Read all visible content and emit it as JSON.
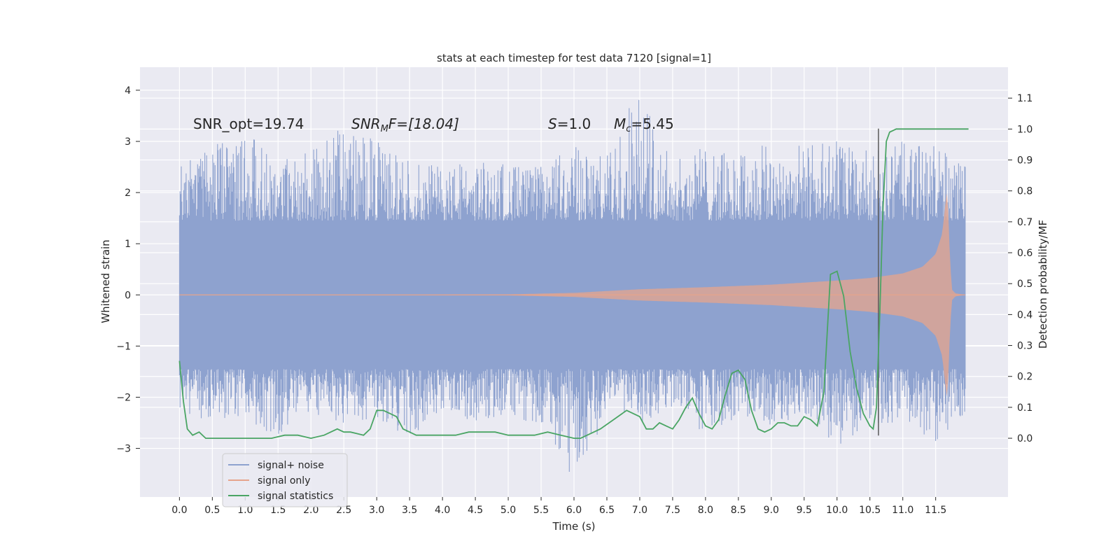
{
  "chart_data": {
    "type": "line",
    "title": "stats at each timestep for test data 7120 [signal=1]",
    "xlabel": "Time (s)",
    "ylabel_left": "Whitened strain",
    "ylabel_right": "Detection probability/MF",
    "xlim": [
      -0.6,
      12.6
    ],
    "ylim_left": [
      -3.95,
      4.45
    ],
    "ylim_right": [
      -0.19,
      1.2
    ],
    "x_ticks": [
      0.0,
      0.5,
      1.0,
      1.5,
      2.0,
      2.5,
      3.0,
      3.5,
      4.0,
      4.5,
      5.0,
      5.5,
      6.0,
      6.5,
      7.0,
      7.5,
      8.0,
      8.5,
      9.0,
      9.5,
      10.0,
      10.5,
      11.0,
      11.5
    ],
    "x_tick_labels": [
      "0.0",
      "0.5",
      "1.0",
      "1.5",
      "2.0",
      "2.5",
      "3.0",
      "3.5",
      "4.0",
      "4.5",
      "5.0",
      "5.5",
      "6.0",
      "6.5",
      "7.0",
      "7.5",
      "8.0",
      "8.5",
      "9.0",
      "9.5",
      "10.0",
      "10.5",
      "11.0",
      "11.5"
    ],
    "y_left_ticks": [
      -3,
      -2,
      -1,
      0,
      1,
      2,
      3,
      4
    ],
    "y_left_tick_labels": [
      "−3",
      "−2",
      "−1",
      "0",
      "1",
      "2",
      "3",
      "4"
    ],
    "y_right_ticks": [
      0.0,
      0.1,
      0.2,
      0.3,
      0.4,
      0.5,
      0.6,
      0.7,
      0.8,
      0.9,
      1.0,
      1.1
    ],
    "y_right_tick_labels": [
      "0.0",
      "0.1",
      "0.2",
      "0.3",
      "0.4",
      "0.5",
      "0.6",
      "0.7",
      "0.8",
      "0.9",
      "1.0",
      "1.1"
    ],
    "annotations": {
      "snr_opt": "SNR_opt=19.74",
      "snr_mf_main": "SNR",
      "snr_mf_sub": "M",
      "snr_mf_rest": "F=[18.04]",
      "s_var": "S",
      "s_val": "=1.0",
      "mc_var": "M",
      "mc_sub": "c",
      "mc_val": "=5.45"
    },
    "vline_x": 10.63,
    "vline_range": [
      -2.75,
      3.25
    ],
    "legend": [
      {
        "label": "signal+ noise",
        "color": "#8ea2cf"
      },
      {
        "label": "signal only",
        "color": "#e6a48c"
      },
      {
        "label": "signal statistics",
        "color": "#4aa564"
      }
    ],
    "series": [
      {
        "name": "signal+ noise",
        "axis": "left",
        "color": "#8ea2cf",
        "envelope": {
          "x": [
            0.0,
            0.5,
            1.0,
            1.5,
            2.0,
            2.5,
            3.0,
            3.5,
            4.0,
            4.5,
            5.0,
            5.5,
            6.0,
            6.5,
            7.0,
            7.5,
            8.0,
            8.5,
            9.0,
            9.5,
            10.0,
            10.5,
            11.0,
            11.5,
            11.95
          ],
          "upper": [
            2.5,
            2.9,
            3.2,
            2.6,
            2.8,
            3.3,
            3.0,
            2.6,
            2.5,
            2.6,
            2.6,
            2.5,
            2.9,
            2.7,
            4.1,
            2.6,
            2.9,
            2.7,
            3.0,
            2.9,
            3.0,
            2.8,
            3.0,
            2.9,
            2.5
          ],
          "lower": [
            -2.2,
            -2.6,
            -2.4,
            -2.8,
            -2.3,
            -2.5,
            -2.4,
            -2.8,
            -2.2,
            -2.5,
            -2.3,
            -2.6,
            -3.6,
            -2.4,
            -2.5,
            -2.2,
            -2.8,
            -2.4,
            -2.6,
            -2.3,
            -3.0,
            -2.5,
            -2.5,
            -2.9,
            -2.3
          ],
          "core": 1.45
        }
      },
      {
        "name": "signal only",
        "axis": "left",
        "color": "#e6a48c",
        "envelope": {
          "x": [
            0.0,
            3.0,
            5.0,
            6.0,
            7.0,
            8.0,
            9.0,
            10.0,
            10.5,
            11.0,
            11.3,
            11.5,
            11.6,
            11.65,
            11.68,
            11.72,
            11.75,
            11.8,
            11.95
          ],
          "amp": [
            0.0,
            0.0,
            0.01,
            0.04,
            0.11,
            0.15,
            0.2,
            0.28,
            0.33,
            0.42,
            0.55,
            0.8,
            1.2,
            1.8,
            2.05,
            0.6,
            0.1,
            0.03,
            0.0
          ]
        }
      },
      {
        "name": "signal statistics",
        "axis": "right",
        "color": "#4aa564",
        "x": [
          0.0,
          0.06,
          0.12,
          0.2,
          0.3,
          0.4,
          0.5,
          0.6,
          0.8,
          1.0,
          1.2,
          1.4,
          1.6,
          1.8,
          2.0,
          2.2,
          2.4,
          2.5,
          2.6,
          2.8,
          2.9,
          3.0,
          3.1,
          3.2,
          3.3,
          3.4,
          3.5,
          3.6,
          3.8,
          4.0,
          4.2,
          4.4,
          4.5,
          4.6,
          4.8,
          5.0,
          5.2,
          5.4,
          5.6,
          5.8,
          6.0,
          6.1,
          6.2,
          6.4,
          6.6,
          6.8,
          7.0,
          7.1,
          7.2,
          7.3,
          7.4,
          7.5,
          7.6,
          7.7,
          7.8,
          7.9,
          8.0,
          8.1,
          8.2,
          8.3,
          8.4,
          8.5,
          8.6,
          8.7,
          8.8,
          8.9,
          9.0,
          9.1,
          9.2,
          9.3,
          9.4,
          9.5,
          9.6,
          9.7,
          9.8,
          9.9,
          10.0,
          10.1,
          10.2,
          10.3,
          10.4,
          10.5,
          10.55,
          10.6,
          10.65,
          10.7,
          10.75,
          10.8,
          10.9,
          11.0,
          11.2,
          11.5,
          11.7,
          11.9,
          12.0
        ],
        "values": [
          0.25,
          0.12,
          0.03,
          0.01,
          0.02,
          0.0,
          0.0,
          0.0,
          0.0,
          0.0,
          0.0,
          0.0,
          0.01,
          0.01,
          0.0,
          0.01,
          0.03,
          0.02,
          0.02,
          0.01,
          0.03,
          0.09,
          0.09,
          0.08,
          0.07,
          0.03,
          0.02,
          0.01,
          0.01,
          0.01,
          0.01,
          0.02,
          0.02,
          0.02,
          0.02,
          0.01,
          0.01,
          0.01,
          0.02,
          0.01,
          0.0,
          0.0,
          0.01,
          0.03,
          0.06,
          0.09,
          0.07,
          0.03,
          0.03,
          0.05,
          0.04,
          0.03,
          0.06,
          0.1,
          0.13,
          0.08,
          0.04,
          0.03,
          0.06,
          0.14,
          0.21,
          0.22,
          0.19,
          0.09,
          0.03,
          0.02,
          0.03,
          0.05,
          0.05,
          0.04,
          0.04,
          0.07,
          0.06,
          0.04,
          0.15,
          0.53,
          0.54,
          0.46,
          0.28,
          0.16,
          0.08,
          0.04,
          0.03,
          0.1,
          0.4,
          0.75,
          0.96,
          0.99,
          1.0,
          1.0,
          1.0,
          1.0,
          1.0,
          1.0,
          1.0
        ]
      }
    ]
  }
}
